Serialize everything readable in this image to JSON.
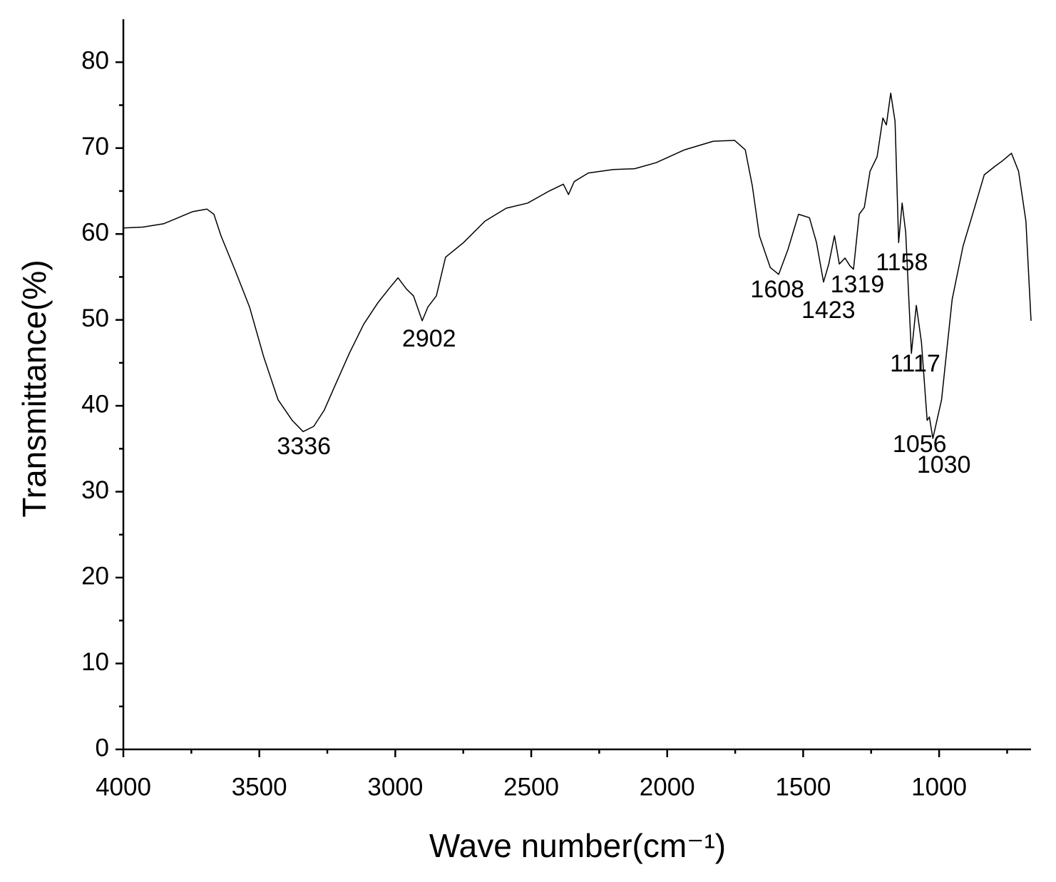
{
  "chart_data": {
    "type": "line",
    "xlabel": "Wave number(cm⁻¹)",
    "ylabel": "Transmittance(%)",
    "color": "#000000",
    "xlim": [
      4000,
      662
    ],
    "ylim": [
      0,
      85
    ],
    "xticks": [
      4000,
      3500,
      3000,
      2500,
      2000,
      1500,
      1000
    ],
    "xminorticks": [
      3750,
      3250,
      2750,
      2250,
      1750,
      1250,
      750
    ],
    "yticks": [
      0,
      10,
      20,
      30,
      40,
      50,
      60,
      70,
      80
    ],
    "yminorticks": [
      5,
      15,
      25,
      35,
      45,
      55,
      65,
      75
    ],
    "x": [
      4000,
      3929,
      3851,
      3798,
      3746,
      3693,
      3667,
      3641,
      3588,
      3536,
      3484,
      3431,
      3379,
      3339,
      3300,
      3261,
      3221,
      3169,
      3116,
      3064,
      3024,
      2990,
      2959,
      2933,
      2901,
      2880,
      2849,
      2815,
      2749,
      2670,
      2592,
      2513,
      2434,
      2382,
      2363,
      2342,
      2290,
      2198,
      2120,
      2041,
      1936,
      1831,
      1752,
      1713,
      1687,
      1661,
      1621,
      1590,
      1556,
      1517,
      1477,
      1451,
      1425,
      1406,
      1385,
      1367,
      1346,
      1328,
      1315,
      1294,
      1275,
      1254,
      1228,
      1207,
      1194,
      1178,
      1162,
      1149,
      1136,
      1123,
      1102,
      1084,
      1065,
      1044,
      1036,
      1023,
      991,
      952,
      912,
      873,
      834,
      794,
      768,
      734,
      708,
      681,
      662
    ],
    "values": [
      60.7,
      60.8,
      61.2,
      61.9,
      62.6,
      62.9,
      62.3,
      59.8,
      55.7,
      51.5,
      45.7,
      40.7,
      38.3,
      37.0,
      37.6,
      39.5,
      42.4,
      46.1,
      49.5,
      52.0,
      53.6,
      54.9,
      53.6,
      52.8,
      49.9,
      51.5,
      52.8,
      57.3,
      59.0,
      61.5,
      63.0,
      63.6,
      65.0,
      65.8,
      64.6,
      66.1,
      67.1,
      67.5,
      67.6,
      68.3,
      69.8,
      70.8,
      70.9,
      69.8,
      65.6,
      59.8,
      56.1,
      55.3,
      58.2,
      62.3,
      61.9,
      59.0,
      54.4,
      56.5,
      59.8,
      56.5,
      57.2,
      56.3,
      55.9,
      62.3,
      63.1,
      67.3,
      69.0,
      73.5,
      72.7,
      76.4,
      73.1,
      59.0,
      63.6,
      60.2,
      46.1,
      51.7,
      47.4,
      38.3,
      38.7,
      36.2,
      40.7,
      52.4,
      58.6,
      62.7,
      66.9,
      67.9,
      68.5,
      69.4,
      67.3,
      61.5,
      49.9
    ],
    "peak_labels": [
      3336,
      2902,
      1608,
      1423,
      1319,
      1158,
      1117,
      1056,
      1030
    ]
  }
}
